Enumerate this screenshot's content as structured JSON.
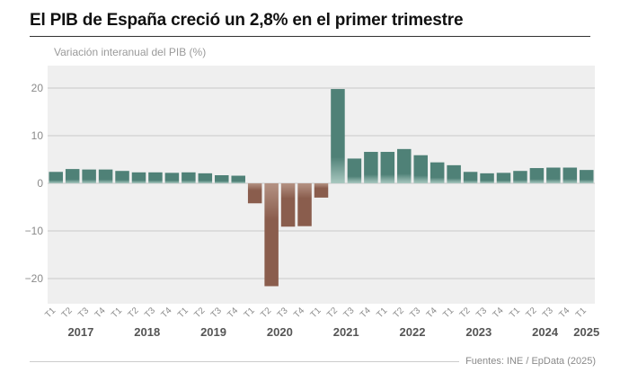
{
  "header": {
    "title": "El PIB de España creció un 2,8% en el primer trimestre",
    "subtitle": "Variación interanual del PIB (%)"
  },
  "footer": {
    "source": "Fuentes: INE / EpData (2025)"
  },
  "colors": {
    "positive": "#4f8177",
    "negative": "#8a5d4d",
    "plot_background": "#efefef",
    "grid": "#c8c8c8",
    "tick_text": "#8a8a8a",
    "year_text": "#555555"
  },
  "chart_data": {
    "type": "bar",
    "title": "El PIB de España creció un 2,8% en el primer trimestre",
    "ylabel": "Variación interanual del PIB (%)",
    "ylim": [
      -25,
      25
    ],
    "yticks": [
      -20,
      -10,
      0,
      10,
      20
    ],
    "grid": true,
    "categories": [
      "T1",
      "T2",
      "T3",
      "T4",
      "T1",
      "T2",
      "T3",
      "T4",
      "T1",
      "T2",
      "T3",
      "T4",
      "T1",
      "T2",
      "T3",
      "T4",
      "T1",
      "T2",
      "T3",
      "T4",
      "T1",
      "T2",
      "T3",
      "T4",
      "T1",
      "T2",
      "T3",
      "T4",
      "T1",
      "T2",
      "T3",
      "T4",
      "T1"
    ],
    "years": [
      {
        "label": "2017",
        "count": 4
      },
      {
        "label": "2018",
        "count": 4
      },
      {
        "label": "2019",
        "count": 4
      },
      {
        "label": "2020",
        "count": 4
      },
      {
        "label": "2021",
        "count": 4
      },
      {
        "label": "2022",
        "count": 4
      },
      {
        "label": "2023",
        "count": 4
      },
      {
        "label": "2024",
        "count": 4
      },
      {
        "label": "2025",
        "count": 1
      }
    ],
    "values": [
      2.4,
      3.0,
      2.9,
      2.9,
      2.6,
      2.3,
      2.3,
      2.2,
      2.3,
      2.1,
      1.7,
      1.6,
      -4.2,
      -21.6,
      -9.1,
      -9.0,
      -3.0,
      19.8,
      5.2,
      6.6,
      6.6,
      7.2,
      5.9,
      4.4,
      3.8,
      2.4,
      2.1,
      2.2,
      2.6,
      3.2,
      3.3,
      3.3,
      2.8
    ]
  }
}
